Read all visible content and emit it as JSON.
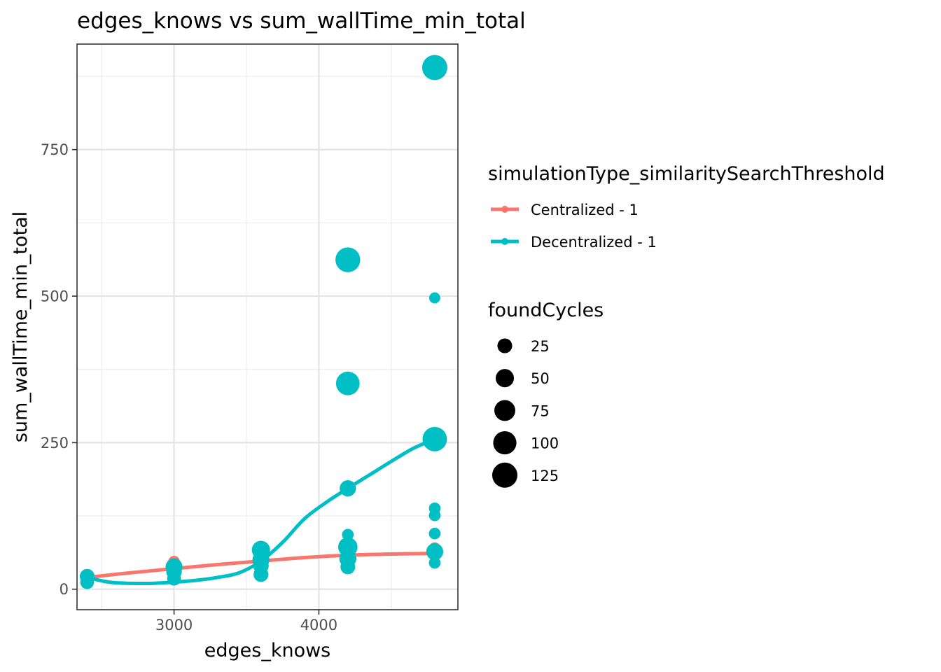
{
  "chart_data": {
    "type": "scatter",
    "title": "edges_knows  vs  sum_wallTime_min_total",
    "xlabel": "edges_knows",
    "ylabel": "sum_wallTime_min_total",
    "xlim": [
      2330,
      4960
    ],
    "ylim": [
      -35,
      930
    ],
    "x_ticks": [
      3000,
      4000
    ],
    "y_ticks": [
      0,
      250,
      500,
      750
    ],
    "x_tick_labels": [
      "3000",
      "4000"
    ],
    "y_tick_labels": [
      "0",
      "250",
      "500",
      "750"
    ],
    "grid": true,
    "legend_position": "right",
    "color_legend": {
      "title": "simulationType_similaritySearchThreshold",
      "entries": [
        {
          "label": "Centralized - 1",
          "color": "#F8766D"
        },
        {
          "label": "Decentralized - 1",
          "color": "#00BFC4"
        }
      ]
    },
    "size_legend": {
      "title": "foundCycles",
      "entries": [
        {
          "label": "25",
          "value": 25
        },
        {
          "label": "50",
          "value": 50
        },
        {
          "label": "75",
          "value": 75
        },
        {
          "label": "100",
          "value": 100
        },
        {
          "label": "125",
          "value": 125
        }
      ]
    },
    "series": [
      {
        "name": "Centralized - 1",
        "color": "#F8766D",
        "points": [
          {
            "x": 2400,
            "y": 20,
            "size": 10
          },
          {
            "x": 2400,
            "y": 15,
            "size": 10
          },
          {
            "x": 3000,
            "y": 47,
            "size": 10
          },
          {
            "x": 3000,
            "y": 35,
            "size": 10
          },
          {
            "x": 3000,
            "y": 25,
            "size": 10
          },
          {
            "x": 3600,
            "y": 58,
            "size": 10
          },
          {
            "x": 3600,
            "y": 45,
            "size": 10
          },
          {
            "x": 4200,
            "y": 60,
            "size": 10
          },
          {
            "x": 4200,
            "y": 52,
            "size": 10
          },
          {
            "x": 4800,
            "y": 70,
            "size": 10
          },
          {
            "x": 4800,
            "y": 60,
            "size": 10
          }
        ],
        "smooth": [
          {
            "x": 2400,
            "y": 20
          },
          {
            "x": 2700,
            "y": 28
          },
          {
            "x": 3000,
            "y": 35
          },
          {
            "x": 3300,
            "y": 42
          },
          {
            "x": 3600,
            "y": 48
          },
          {
            "x": 3900,
            "y": 54
          },
          {
            "x": 4200,
            "y": 58
          },
          {
            "x": 4500,
            "y": 60
          },
          {
            "x": 4800,
            "y": 61
          }
        ]
      },
      {
        "name": "Decentralized - 1",
        "color": "#00BFC4",
        "points": [
          {
            "x": 2400,
            "y": 22,
            "size": 25
          },
          {
            "x": 2400,
            "y": 12,
            "size": 20
          },
          {
            "x": 3000,
            "y": 38,
            "size": 40
          },
          {
            "x": 3000,
            "y": 30,
            "size": 30
          },
          {
            "x": 3000,
            "y": 18,
            "size": 20
          },
          {
            "x": 3600,
            "y": 67,
            "size": 50
          },
          {
            "x": 3600,
            "y": 50,
            "size": 40
          },
          {
            "x": 3600,
            "y": 40,
            "size": 30
          },
          {
            "x": 3600,
            "y": 25,
            "size": 25
          },
          {
            "x": 4200,
            "y": 562,
            "size": 120
          },
          {
            "x": 4200,
            "y": 351,
            "size": 105
          },
          {
            "x": 4200,
            "y": 172,
            "size": 35
          },
          {
            "x": 4200,
            "y": 93,
            "size": 10
          },
          {
            "x": 4200,
            "y": 72,
            "size": 60
          },
          {
            "x": 4200,
            "y": 52,
            "size": 40
          },
          {
            "x": 4200,
            "y": 38,
            "size": 25
          },
          {
            "x": 4800,
            "y": 890,
            "size": 125
          },
          {
            "x": 4800,
            "y": 497,
            "size": 8
          },
          {
            "x": 4800,
            "y": 256,
            "size": 115
          },
          {
            "x": 4800,
            "y": 138,
            "size": 10
          },
          {
            "x": 4800,
            "y": 126,
            "size": 10
          },
          {
            "x": 4800,
            "y": 95,
            "size": 10
          },
          {
            "x": 4800,
            "y": 64,
            "size": 40
          },
          {
            "x": 4800,
            "y": 45,
            "size": 10
          }
        ],
        "smooth": [
          {
            "x": 2400,
            "y": 20
          },
          {
            "x": 2550,
            "y": 12
          },
          {
            "x": 2700,
            "y": 10
          },
          {
            "x": 2850,
            "y": 10
          },
          {
            "x": 3000,
            "y": 12
          },
          {
            "x": 3150,
            "y": 15
          },
          {
            "x": 3300,
            "y": 20
          },
          {
            "x": 3450,
            "y": 28
          },
          {
            "x": 3600,
            "y": 48
          },
          {
            "x": 3750,
            "y": 80
          },
          {
            "x": 3900,
            "y": 120
          },
          {
            "x": 4050,
            "y": 148
          },
          {
            "x": 4200,
            "y": 172
          },
          {
            "x": 4350,
            "y": 195
          },
          {
            "x": 4500,
            "y": 218
          },
          {
            "x": 4650,
            "y": 240
          },
          {
            "x": 4800,
            "y": 256
          }
        ]
      }
    ]
  }
}
